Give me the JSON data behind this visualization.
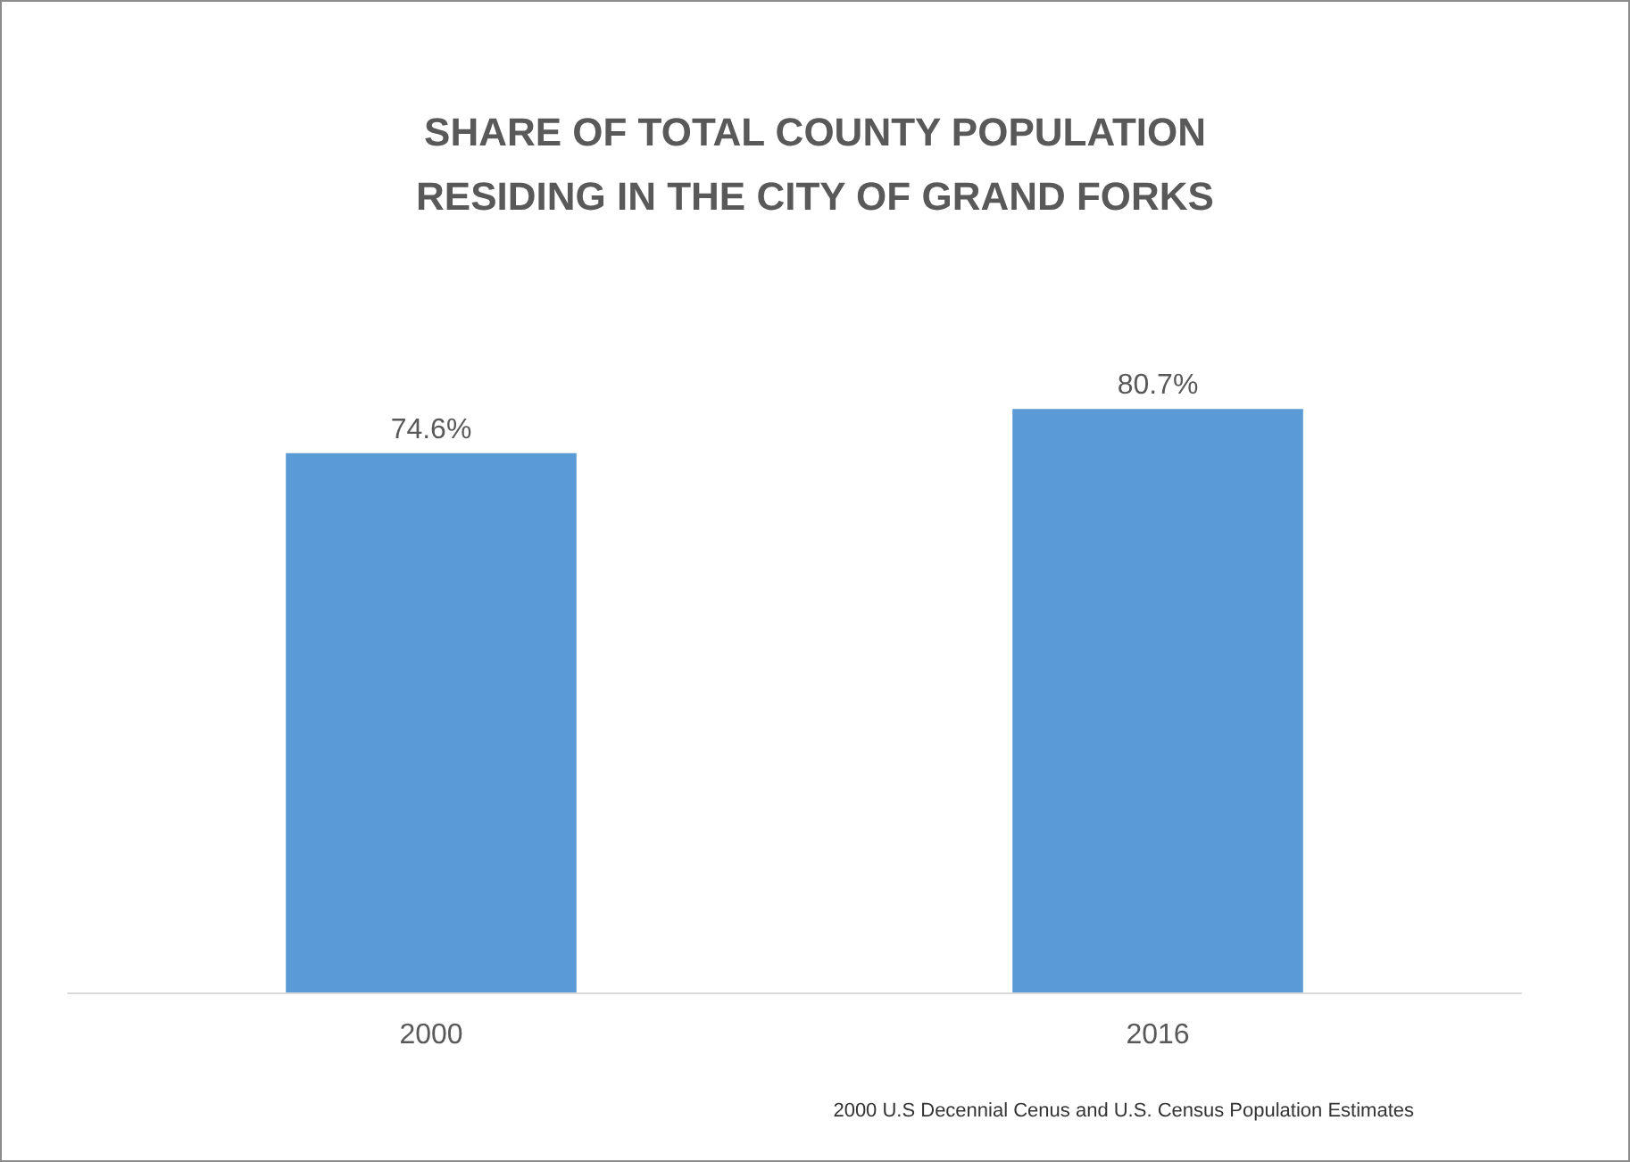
{
  "chart_data": {
    "type": "bar",
    "title": "SHARE OF TOTAL COUNTY POPULATION\nRESIDING IN THE CITY OF GRAND FORKS",
    "categories": [
      "2000",
      "2016"
    ],
    "values": [
      74.6,
      80.7
    ],
    "value_labels": [
      "74.6%",
      "80.7%"
    ],
    "color": "#5b9bd5",
    "annotations": [
      "2000 U.S Decennial Cenus and U.S. Census Population Estimates"
    ]
  }
}
